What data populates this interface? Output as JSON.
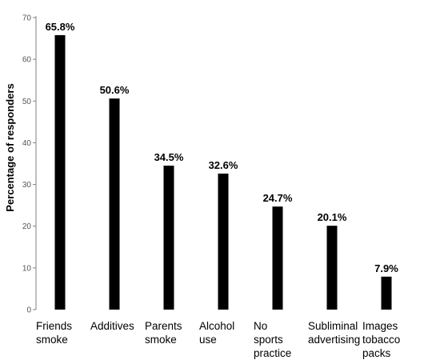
{
  "chart_data": {
    "type": "bar",
    "title": "",
    "xlabel": "",
    "ylabel": "Percentage of responders",
    "ylim": [
      0,
      70
    ],
    "yticks": [
      0,
      10,
      20,
      30,
      40,
      50,
      60,
      70
    ],
    "categories": [
      [
        "Friends",
        "smoke"
      ],
      [
        "Additives"
      ],
      [
        "Parents",
        "smoke"
      ],
      [
        "Alcohol",
        "use"
      ],
      [
        "No",
        "sports",
        "practice"
      ],
      [
        "Subliminal",
        "advertising"
      ],
      [
        "Images",
        "tobacco",
        "packs"
      ]
    ],
    "values": [
      65.8,
      50.6,
      34.5,
      32.6,
      24.7,
      20.1,
      7.9
    ],
    "value_labels": [
      "65.8%",
      "50.6%",
      "34.5%",
      "32.6%",
      "24.7%",
      "20.1%",
      "7.9%"
    ],
    "grid": false,
    "bar_color": "#000000",
    "axis_color": "#808080"
  }
}
